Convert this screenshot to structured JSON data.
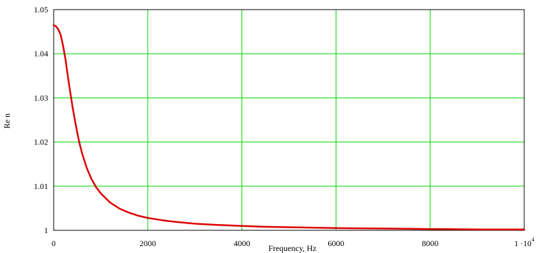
{
  "chart_data": {
    "type": "line",
    "xlabel": "Frequency, Hz",
    "ylabel": "Re n",
    "xlim": [
      0,
      10000
    ],
    "ylim": [
      1,
      1.05
    ],
    "x_ticks": [
      0,
      2000,
      4000,
      6000,
      8000,
      10000
    ],
    "x_tick_labels": [
      "0",
      "2000",
      "4000",
      "6000",
      "8000",
      "1 ·10"
    ],
    "x_tick_last_exponent": "4",
    "y_ticks": [
      1,
      1.01,
      1.02,
      1.03,
      1.04,
      1.05
    ],
    "y_tick_labels": [
      "1",
      "1.01",
      "1.02",
      "1.03",
      "1.04",
      "1.05"
    ],
    "grid": true,
    "colors": {
      "line": "#dd0000",
      "grid": "#00d400",
      "frame": "#000000"
    },
    "series": [
      {
        "x": [
          0,
          50,
          100,
          150,
          200,
          250,
          300,
          350,
          400,
          450,
          500,
          550,
          600,
          700,
          800,
          900,
          1000,
          1200,
          1400,
          1600,
          1800,
          2000,
          2300,
          2600,
          3000,
          3500,
          4000,
          4500,
          5000,
          5500,
          6000,
          7000,
          8000,
          9000,
          10000
        ],
        "y": [
          1.0465,
          1.0462,
          1.0455,
          1.0442,
          1.0418,
          1.0388,
          1.035,
          1.0315,
          1.028,
          1.025,
          1.0222,
          1.0197,
          1.0176,
          1.0142,
          1.0117,
          1.0098,
          1.0084,
          1.0063,
          1.0049,
          1.004,
          1.0033,
          1.0028,
          1.0023,
          1.0019,
          1.0015,
          1.0012,
          1.001,
          1.0008,
          1.0007,
          1.0006,
          1.0005,
          1.0004,
          1.0003,
          1.0002,
          1.0002
        ]
      }
    ]
  }
}
